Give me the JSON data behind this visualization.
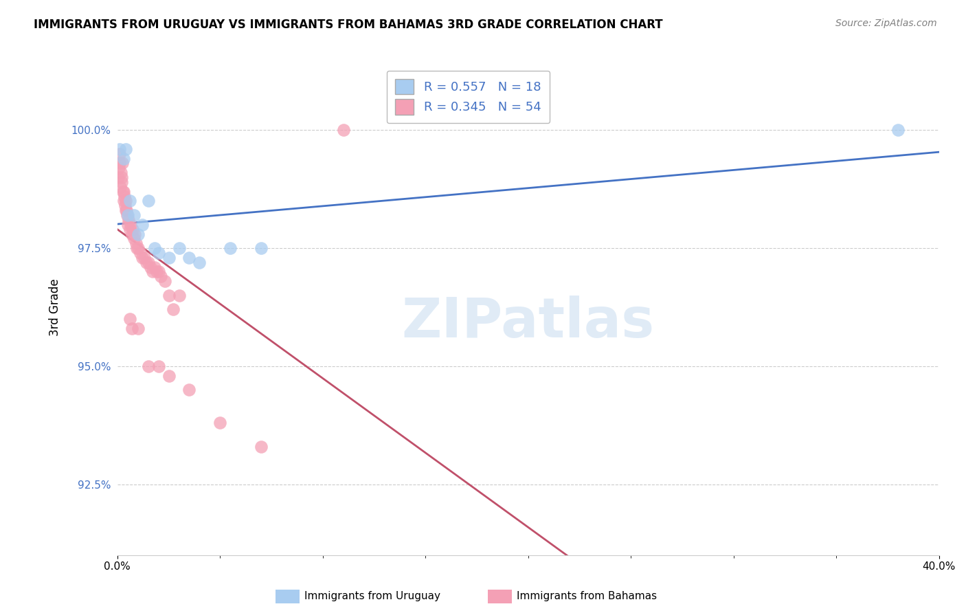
{
  "title": "IMMIGRANTS FROM URUGUAY VS IMMIGRANTS FROM BAHAMAS 3RD GRADE CORRELATION CHART",
  "source": "Source: ZipAtlas.com",
  "ylabel": "3rd Grade",
  "yticks": [
    92.5,
    95.0,
    97.5,
    100.0
  ],
  "xlim": [
    0.0,
    40.0
  ],
  "ylim": [
    91.0,
    101.5
  ],
  "R_uruguay": 0.557,
  "N_uruguay": 18,
  "R_bahamas": 0.345,
  "N_bahamas": 54,
  "color_uruguay": "#A8CCF0",
  "color_bahamas": "#F4A0B5",
  "trendline_color_uruguay": "#4472C4",
  "trendline_color_bahamas": "#C0506A",
  "scatter_uruguay_x": [
    0.1,
    0.3,
    0.4,
    0.5,
    0.6,
    0.8,
    1.0,
    1.2,
    1.5,
    1.8,
    2.0,
    2.5,
    3.0,
    3.5,
    4.0,
    5.5,
    7.0,
    38.0
  ],
  "scatter_uruguay_y": [
    99.6,
    99.4,
    99.6,
    98.2,
    98.5,
    98.2,
    97.8,
    98.0,
    98.5,
    97.5,
    97.4,
    97.3,
    97.5,
    97.3,
    97.2,
    97.5,
    97.5,
    100.0
  ],
  "scatter_bahamas_x": [
    0.05,
    0.08,
    0.1,
    0.12,
    0.15,
    0.18,
    0.2,
    0.22,
    0.25,
    0.28,
    0.3,
    0.32,
    0.35,
    0.38,
    0.4,
    0.42,
    0.45,
    0.48,
    0.5,
    0.55,
    0.6,
    0.65,
    0.7,
    0.75,
    0.8,
    0.85,
    0.9,
    0.95,
    1.0,
    1.1,
    1.2,
    1.3,
    1.4,
    1.5,
    1.6,
    1.7,
    1.8,
    1.9,
    2.0,
    2.1,
    2.3,
    2.5,
    2.7,
    3.0,
    0.6,
    0.7,
    1.0,
    1.5,
    2.0,
    2.5,
    3.5,
    5.0,
    7.0,
    11.0
  ],
  "scatter_bahamas_y": [
    99.0,
    99.2,
    99.5,
    99.3,
    98.8,
    99.1,
    98.9,
    99.0,
    99.3,
    98.7,
    98.5,
    98.7,
    98.6,
    98.4,
    98.3,
    98.5,
    98.3,
    98.2,
    98.0,
    98.1,
    97.9,
    98.0,
    97.8,
    97.9,
    97.7,
    97.8,
    97.6,
    97.5,
    97.5,
    97.4,
    97.3,
    97.3,
    97.2,
    97.2,
    97.1,
    97.0,
    97.1,
    97.0,
    97.0,
    96.9,
    96.8,
    96.5,
    96.2,
    96.5,
    96.0,
    95.8,
    95.8,
    95.0,
    95.0,
    94.8,
    94.5,
    93.8,
    93.3,
    100.0
  ],
  "watermark": "ZIPatlas",
  "background_color": "#FFFFFF"
}
